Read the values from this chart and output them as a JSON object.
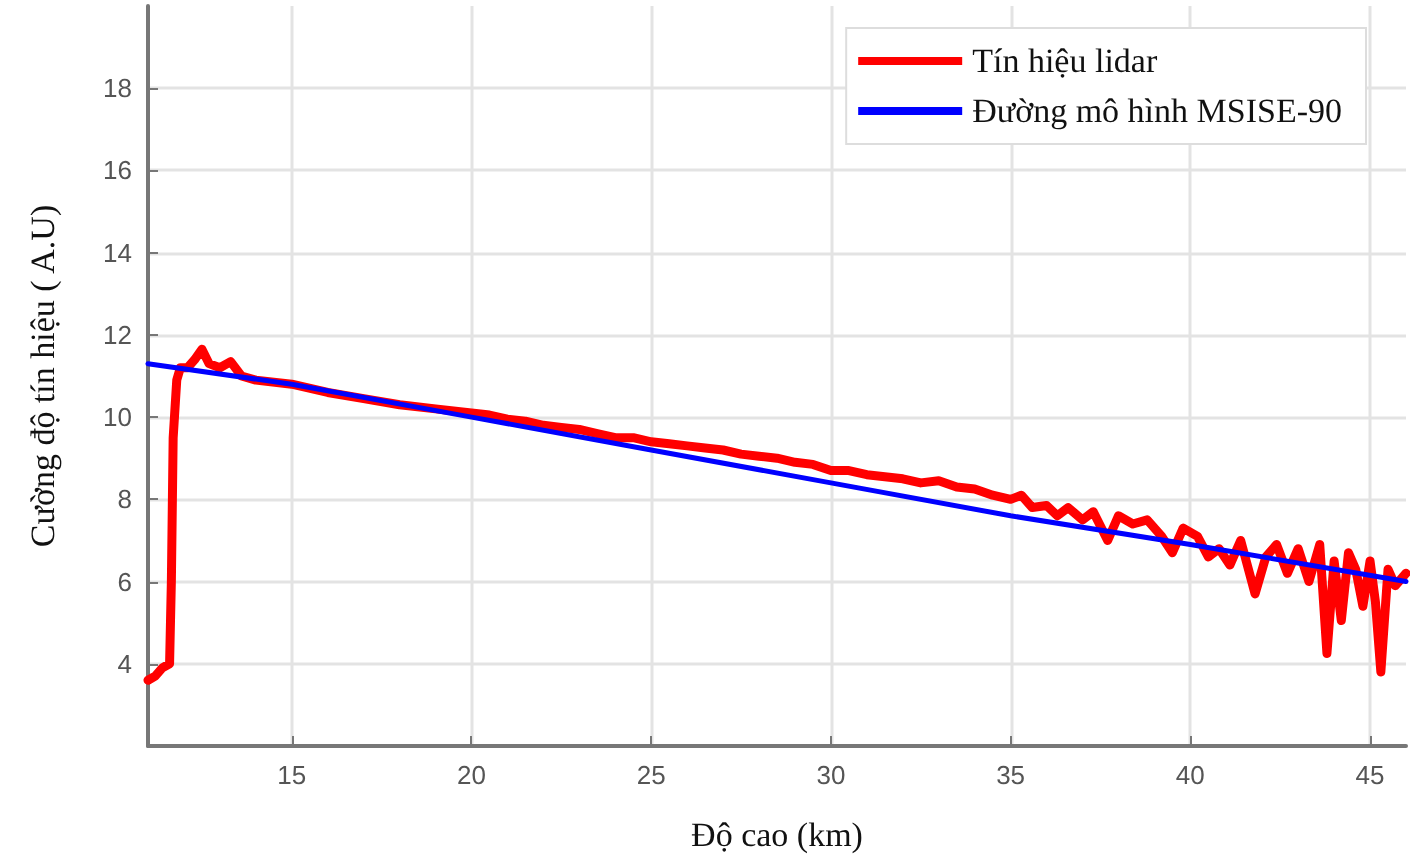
{
  "chart_data": {
    "type": "line",
    "xlabel": "Độ cao (km)",
    "ylabel": "Cường độ tín hiệu ( A.U)",
    "xlim": [
      11,
      46
    ],
    "xticks": [
      15,
      20,
      25,
      30,
      35,
      40,
      45
    ],
    "ylim": [
      2,
      20
    ],
    "yticks": [
      4,
      6,
      8,
      10,
      12,
      14,
      16,
      18
    ],
    "grid": true,
    "legend": "top right",
    "marker": "none",
    "line_style": "solid",
    "series": [
      {
        "name": "Tín hiệu lidar",
        "color": "#ff0000",
        "x": [
          11.0,
          11.2,
          11.4,
          11.6,
          11.65,
          11.7,
          11.8,
          11.9,
          12.1,
          12.3,
          12.5,
          12.7,
          13.0,
          13.3,
          13.6,
          14,
          15,
          16,
          17,
          18,
          19,
          20,
          20.5,
          21,
          21.5,
          22,
          22.5,
          23,
          23.5,
          24,
          24.5,
          25,
          25.5,
          26,
          26.5,
          27,
          27.5,
          28,
          28.5,
          29,
          29.5,
          30,
          30.5,
          31,
          31.5,
          32,
          32.5,
          33,
          33.5,
          34,
          34.5,
          35,
          35.3,
          35.6,
          36,
          36.3,
          36.6,
          37,
          37.3,
          37.7,
          38,
          38.4,
          38.8,
          39.2,
          39.5,
          39.8,
          40.2,
          40.5,
          40.8,
          41.1,
          41.4,
          41.8,
          42.1,
          42.4,
          42.7,
          43.0,
          43.3,
          43.6,
          43.8,
          44.0,
          44.2,
          44.4,
          44.6,
          44.8,
          45.0,
          45.15,
          45.3,
          45.5,
          45.7,
          46
        ],
        "values": [
          3.6,
          3.7,
          3.9,
          4.0,
          6,
          9.5,
          10.9,
          11.2,
          11.2,
          11.4,
          11.65,
          11.3,
          11.2,
          11.35,
          11.0,
          10.9,
          10.8,
          10.6,
          10.45,
          10.3,
          10.2,
          10.1,
          10.05,
          9.95,
          9.9,
          9.8,
          9.75,
          9.7,
          9.6,
          9.5,
          9.5,
          9.4,
          9.35,
          9.3,
          9.25,
          9.2,
          9.1,
          9.05,
          9.0,
          8.9,
          8.85,
          8.7,
          8.7,
          8.6,
          8.55,
          8.5,
          8.4,
          8.45,
          8.3,
          8.25,
          8.1,
          8.0,
          8.1,
          7.8,
          7.85,
          7.6,
          7.8,
          7.5,
          7.7,
          7.0,
          7.6,
          7.4,
          7.5,
          7.1,
          6.7,
          7.3,
          7.1,
          6.6,
          6.8,
          6.4,
          7.0,
          5.7,
          6.6,
          6.9,
          6.2,
          6.8,
          6.0,
          6.9,
          4.25,
          6.5,
          5.05,
          6.7,
          6.3,
          5.4,
          6.5,
          5.5,
          3.8,
          6.3,
          5.9,
          6.2
        ]
      },
      {
        "name": "Đường mô hình MSISE-90",
        "color": "#0000ff",
        "x": [
          11,
          15,
          20,
          25,
          30,
          35,
          40,
          46
        ],
        "values": [
          11.3,
          10.8,
          10.0,
          9.2,
          8.4,
          7.6,
          6.9,
          6.0
        ]
      }
    ]
  }
}
